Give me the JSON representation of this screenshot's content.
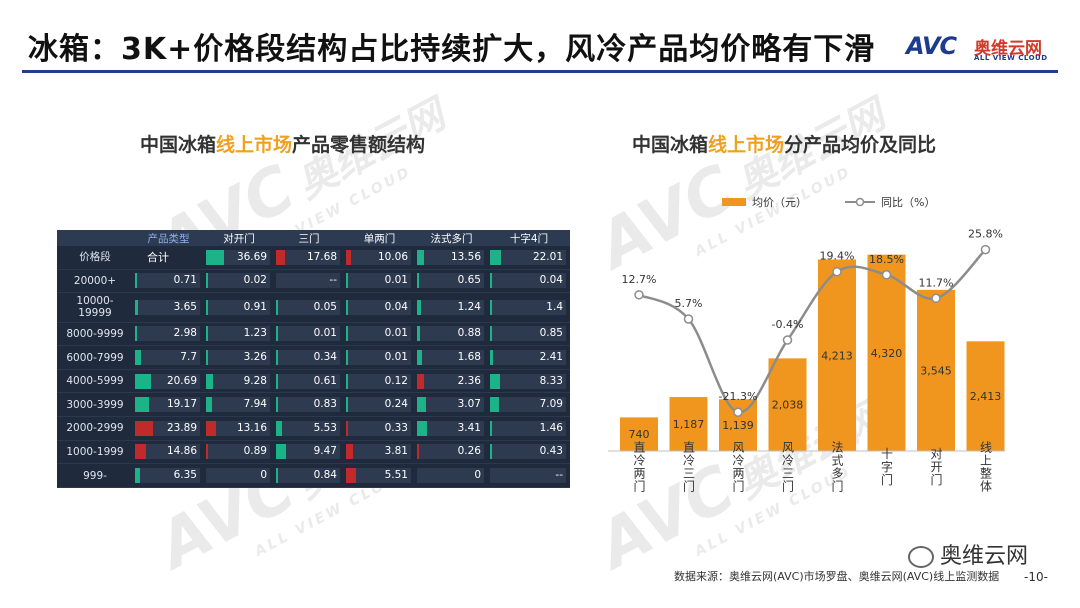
{
  "header": {
    "title": "冰箱：3K+价格段结构占比持续扩大，风冷产品均价略有下滑",
    "logo_mark": "AVC",
    "logo_cn": "奥维云网",
    "logo_en": "ALL VIEW CLOUD"
  },
  "watermark": {
    "mark": "AVC",
    "cn": "奥维云网",
    "en": "ALL VIEW CLOUD"
  },
  "left_panel": {
    "title_prefix": "中国冰箱",
    "title_highlight": "线上市场",
    "title_suffix": "产品零售额结构"
  },
  "right_panel": {
    "title_prefix": "中国冰箱",
    "title_highlight": "线上市场",
    "title_suffix": "分产品均价及同比"
  },
  "table": {
    "corner_top": "产品类型",
    "corner_bottom": "价格段",
    "columns": [
      "对开门",
      "三门",
      "单两门",
      "法式多门",
      "十字4门"
    ],
    "rows": [
      {
        "label": "合计",
        "total": "",
        "values": [
          "36.69",
          "17.68",
          "10.06",
          "13.56",
          "22.01"
        ]
      },
      {
        "label": "20000+",
        "total": "0.71",
        "values": [
          "0.02",
          "--",
          "0.01",
          "0.65",
          "0.04"
        ]
      },
      {
        "label": "10000-\n19999",
        "total": "3.65",
        "values": [
          "0.91",
          "0.05",
          "0.04",
          "1.24",
          "1.4"
        ]
      },
      {
        "label": "8000-9999",
        "total": "2.98",
        "values": [
          "1.23",
          "0.01",
          "0.01",
          "0.88",
          "0.85"
        ]
      },
      {
        "label": "6000-7999",
        "total": "7.7",
        "values": [
          "3.26",
          "0.34",
          "0.01",
          "1.68",
          "2.41"
        ]
      },
      {
        "label": "4000-5999",
        "total": "20.69",
        "values": [
          "9.28",
          "0.61",
          "0.12",
          "2.36",
          "8.33"
        ]
      },
      {
        "label": "3000-3999",
        "total": "19.17",
        "values": [
          "7.94",
          "0.83",
          "0.24",
          "3.07",
          "7.09"
        ]
      },
      {
        "label": "2000-2999",
        "total": "23.89",
        "values": [
          "13.16",
          "5.53",
          "0.33",
          "3.41",
          "1.46"
        ]
      },
      {
        "label": "1000-1999",
        "total": "14.86",
        "values": [
          "0.89",
          "9.47",
          "3.81",
          "0.26",
          "0.43"
        ]
      },
      {
        "label": "999-",
        "total": "6.35",
        "values": [
          "0",
          "0.84",
          "5.51",
          "0",
          "--"
        ]
      }
    ],
    "total_row_header": "合计",
    "colors": {
      "green": "#1db389",
      "red": "#c02a2a"
    },
    "row_bar_colors": [
      [
        "green",
        "red",
        "red",
        "green",
        "green"
      ],
      [
        "green",
        "green",
        "green",
        "green",
        "green"
      ],
      [
        "green",
        "green",
        "green",
        "green",
        "green"
      ],
      [
        "green",
        "green",
        "green",
        "green",
        "green"
      ],
      [
        "green",
        "green",
        "green",
        "green",
        "green"
      ],
      [
        "green",
        "green",
        "green",
        "red",
        "green"
      ],
      [
        "green",
        "green",
        "green",
        "green",
        "green"
      ],
      [
        "red",
        "green",
        "red",
        "green",
        "green"
      ],
      [
        "red",
        "green",
        "red",
        "red",
        "green"
      ],
      [
        "green",
        "green",
        "red",
        "green",
        "green"
      ]
    ],
    "total_bar_colors": [
      "green",
      "green",
      "green",
      "green",
      "green",
      "green",
      "green",
      "red",
      "red",
      "green"
    ]
  },
  "chart_data": {
    "type": "bar",
    "categories": [
      "直冷两门",
      "直冷三门",
      "风冷两门",
      "风冷三门",
      "法式多门",
      "十字门",
      "对开门",
      "线上整体"
    ],
    "series": [
      {
        "name": "均价（元）",
        "type": "bar",
        "values": [
          740,
          1187,
          1139,
          2038,
          4213,
          4320,
          3545,
          2413
        ],
        "labels": [
          "740",
          "1,187",
          "1,139",
          "2,038",
          "4,213",
          "4,320",
          "3,545",
          "2,413"
        ]
      },
      {
        "name": "同比（%）",
        "type": "line",
        "values": [
          12.7,
          5.7,
          -21.3,
          -0.4,
          19.4,
          18.5,
          11.7,
          25.8
        ],
        "labels": [
          "12.7%",
          "5.7%",
          "-21.3%",
          "-0.4%",
          "19.4%",
          "18.5%",
          "11.7%",
          "25.8%"
        ]
      }
    ],
    "bar_color": "#f0961e",
    "line_color": "#8c8c8c",
    "legend_position": "top"
  },
  "footer": {
    "source": "数据来源：奥维云网(AVC)市场罗盘、奥维云网(AVC)线上监测数据",
    "page": "-10-",
    "wechat": "奥维云网"
  }
}
